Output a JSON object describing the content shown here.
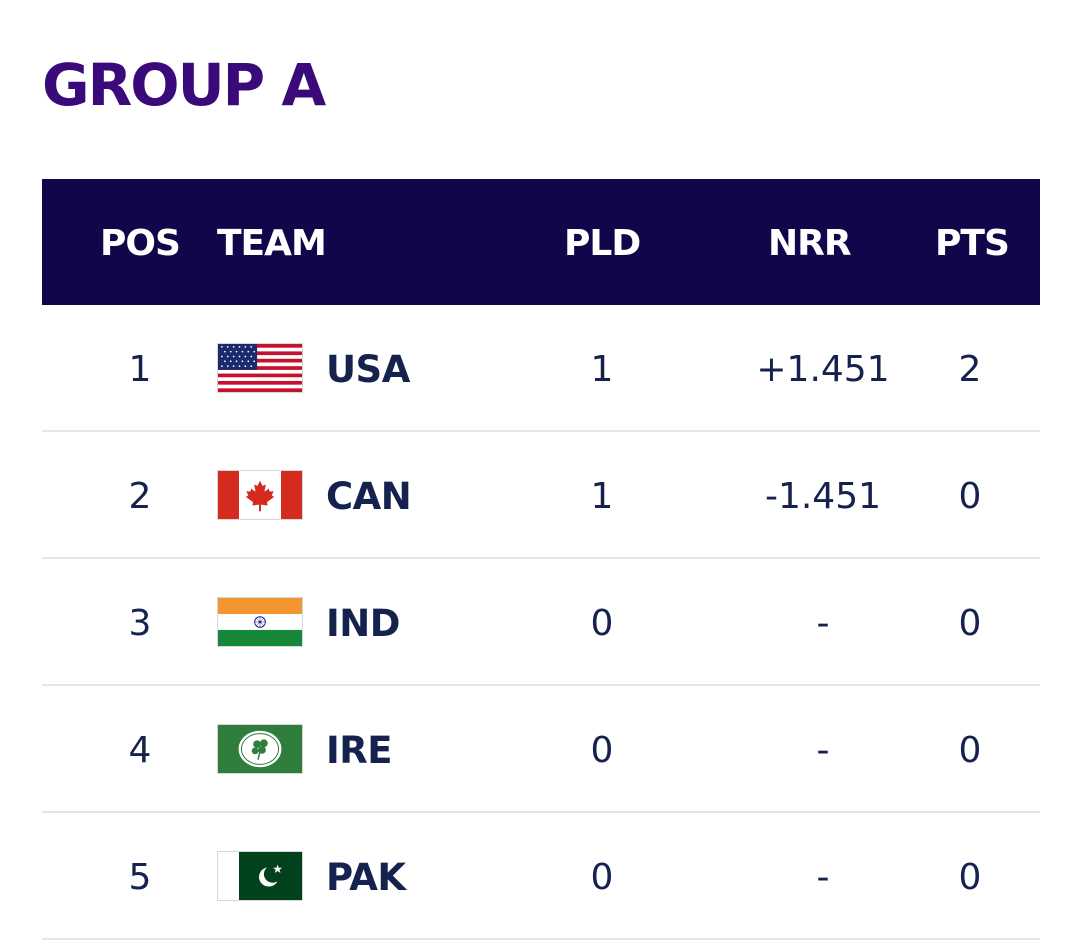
{
  "title": "GROUP A",
  "columns": {
    "pos": "POS",
    "team": "TEAM",
    "pld": "PLD",
    "nrr": "NRR",
    "pts": "PTS"
  },
  "colors": {
    "title": "#3a0a7a",
    "header_bg": "#12054a",
    "header_text": "#ffffff",
    "row_text": "#14224d",
    "divider": "#e6e6e6"
  },
  "rows": [
    {
      "pos": "1",
      "flag": "usa-flag-icon",
      "team": "USA",
      "pld": "1",
      "nrr": "+1.451",
      "pts": "2"
    },
    {
      "pos": "2",
      "flag": "canada-flag-icon",
      "team": "CAN",
      "pld": "1",
      "nrr": "-1.451",
      "pts": "0"
    },
    {
      "pos": "3",
      "flag": "india-flag-icon",
      "team": "IND",
      "pld": "0",
      "nrr": "-",
      "pts": "0"
    },
    {
      "pos": "4",
      "flag": "ireland-cricket-flag-icon",
      "team": "IRE",
      "pld": "0",
      "nrr": "-",
      "pts": "0"
    },
    {
      "pos": "5",
      "flag": "pakistan-flag-icon",
      "team": "PAK",
      "pld": "0",
      "nrr": "-",
      "pts": "0"
    }
  ]
}
